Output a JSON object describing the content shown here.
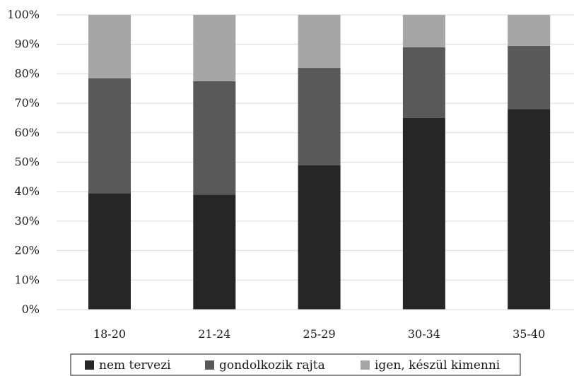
{
  "chart_data": {
    "type": "bar",
    "stacked": true,
    "percent": true,
    "categories": [
      "18-20",
      "21-24",
      "25-29",
      "30-34",
      "35-40"
    ],
    "series": [
      {
        "name": "nem tervezi",
        "color": "#262626",
        "values": [
          39.5,
          39,
          49,
          65,
          68
        ]
      },
      {
        "name": "gondolkozik rajta",
        "color": "#595959",
        "values": [
          39,
          38.5,
          33,
          24,
          21.5
        ]
      },
      {
        "name": "igen, készül kimenni",
        "color": "#a6a6a6",
        "values": [
          21.5,
          22.5,
          18,
          11,
          10.5
        ]
      }
    ],
    "y_ticks": [
      "0%",
      "10%",
      "20%",
      "30%",
      "40%",
      "50%",
      "60%",
      "70%",
      "80%",
      "90%",
      "100%"
    ],
    "ylim": [
      0,
      100
    ],
    "grid": true,
    "legend": "bottom"
  }
}
